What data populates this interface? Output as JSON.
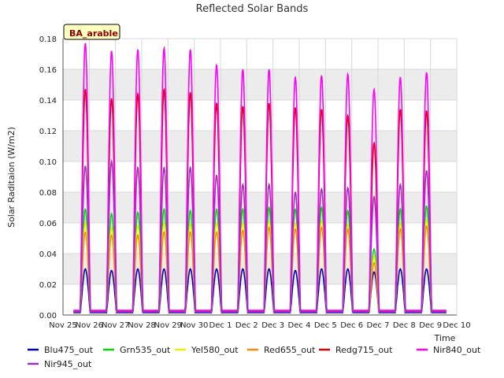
{
  "chart_data": {
    "type": "line",
    "title": "Reflected Solar Bands",
    "xlabel": "Time",
    "ylabel": "Solar Raditaion (W/m2)",
    "badge": "BA_arable",
    "xlim": [
      0,
      15
    ],
    "ylim": [
      0,
      0.18
    ],
    "x_ticks": [
      0,
      1,
      2,
      3,
      4,
      5,
      6,
      7,
      8,
      9,
      10,
      11,
      12,
      13,
      14,
      15
    ],
    "x_tick_labels": [
      "Nov 25",
      "Nov 26",
      "Nov 27",
      "Nov 28",
      "Nov 29",
      "Nov 30",
      "Dec 1",
      "Dec 2",
      "Dec 3",
      "Dec 4",
      "Dec 5",
      "Dec 6",
      "Dec 7",
      "Dec 8",
      "Dec 9",
      "Dec 10"
    ],
    "y_ticks": [
      0.0,
      0.02,
      0.04,
      0.06,
      0.08,
      0.1,
      0.12,
      0.14,
      0.16,
      0.18
    ],
    "y_tick_labels": [
      "0.00",
      "0.02",
      "0.04",
      "0.06",
      "0.08",
      "0.10",
      "0.12",
      "0.14",
      "0.16",
      "0.18"
    ],
    "day_x": [
      0.85,
      1.85,
      2.85,
      3.85,
      4.85,
      5.85,
      6.85,
      7.85,
      8.85,
      9.85,
      10.85,
      11.85,
      12.85,
      13.85
    ],
    "series": [
      {
        "name": "Blu475_out",
        "color": "#0000cc",
        "baseline": 0.0015,
        "peaks": [
          0.03,
          0.029,
          0.03,
          0.03,
          0.03,
          0.03,
          0.03,
          0.03,
          0.029,
          0.03,
          0.03,
          0.028,
          0.03,
          0.03
        ]
      },
      {
        "name": "Grn535_out",
        "color": "#00dd00",
        "baseline": 0.002,
        "peaks": [
          0.069,
          0.066,
          0.067,
          0.069,
          0.068,
          0.069,
          0.069,
          0.07,
          0.069,
          0.07,
          0.068,
          0.043,
          0.069,
          0.071
        ]
      },
      {
        "name": "Yel580_out",
        "color": "#eeee00",
        "baseline": 0.002,
        "peaks": [
          0.06,
          0.057,
          0.058,
          0.06,
          0.059,
          0.06,
          0.06,
          0.061,
          0.06,
          0.061,
          0.059,
          0.038,
          0.06,
          0.062
        ]
      },
      {
        "name": "Red655_out",
        "color": "#ff8c00",
        "baseline": 0.002,
        "peaks": [
          0.054,
          0.052,
          0.052,
          0.054,
          0.054,
          0.054,
          0.055,
          0.057,
          0.056,
          0.057,
          0.056,
          0.034,
          0.056,
          0.058
        ]
      },
      {
        "name": "Redg715_out",
        "color": "#dd0000",
        "baseline": 0.0025,
        "peaks": [
          0.147,
          0.141,
          0.144,
          0.147,
          0.145,
          0.138,
          0.136,
          0.138,
          0.135,
          0.134,
          0.13,
          0.112,
          0.134,
          0.133
        ]
      },
      {
        "name": "Nir840_out",
        "color": "#ff00ff",
        "baseline": 0.003,
        "peaks": [
          0.177,
          0.172,
          0.173,
          0.174,
          0.173,
          0.163,
          0.16,
          0.16,
          0.155,
          0.156,
          0.157,
          0.147,
          0.155,
          0.158
        ]
      },
      {
        "name": "Nir945_out",
        "color": "#9932cc",
        "baseline": 0.002,
        "peaks": [
          0.097,
          0.1,
          0.096,
          0.096,
          0.096,
          0.091,
          0.085,
          0.085,
          0.08,
          0.082,
          0.083,
          0.077,
          0.085,
          0.094
        ]
      }
    ]
  }
}
